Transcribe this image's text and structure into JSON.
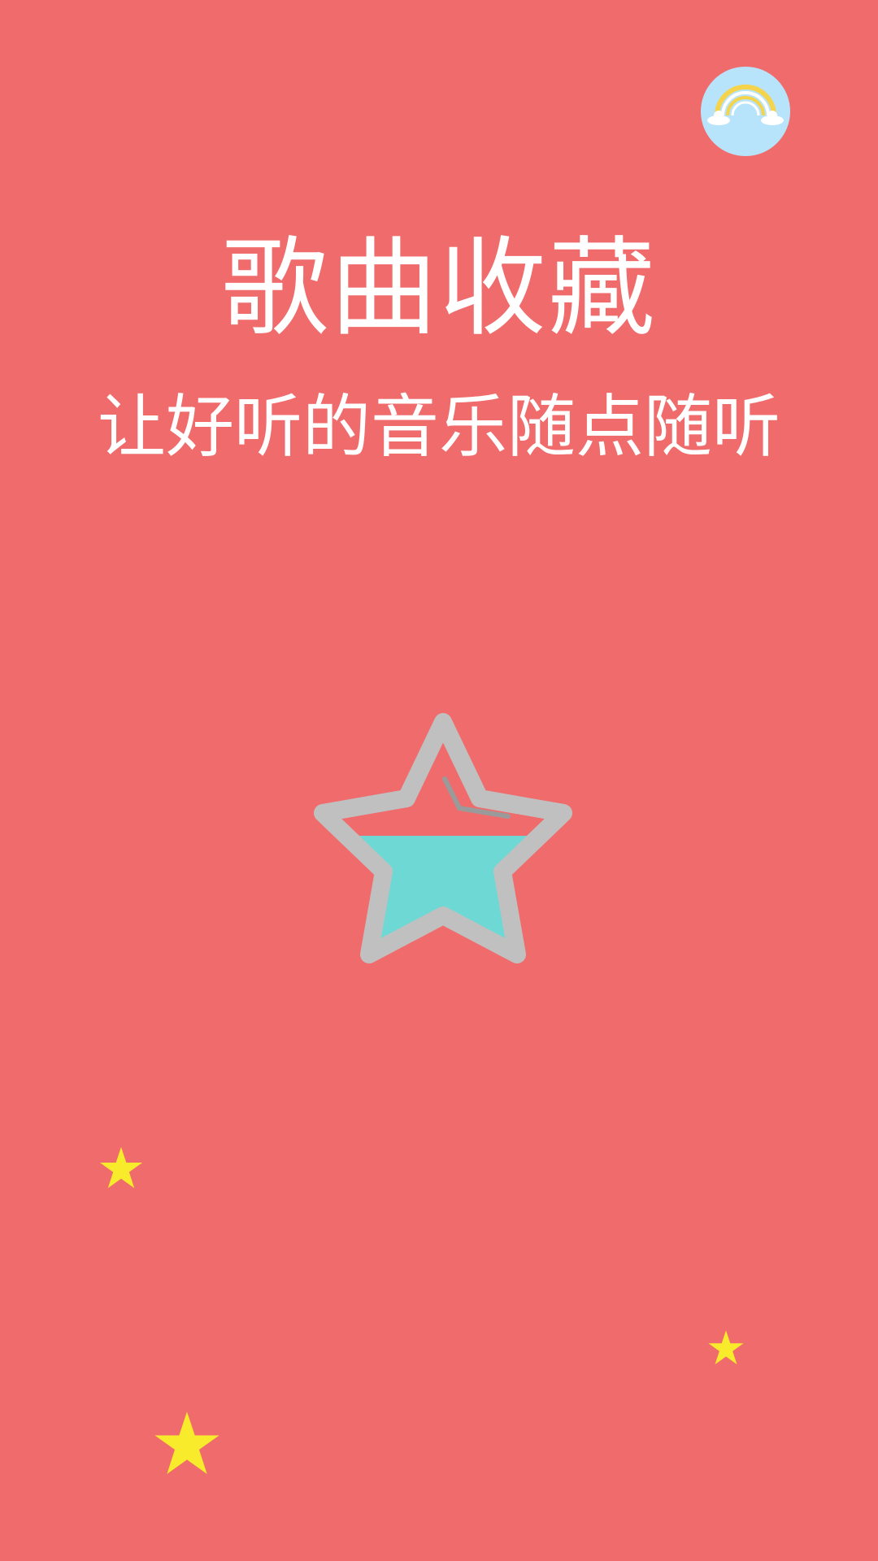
{
  "screen": {
    "title": "歌曲收藏",
    "subtitle": "让好听的音乐随点随听"
  },
  "icons": {
    "badge": "rainbow-icon",
    "hero": "star-favorite-icon",
    "decor": "yellow-star-icon"
  },
  "colors": {
    "background": "#f06c6c",
    "badge_bg": "#b8e4fb",
    "star_outline": "#c0c0c0",
    "star_fill": "#6ed8d4",
    "deco_star": "#f7eb2b",
    "text": "#ffffff"
  },
  "hero_star": {
    "fill_level": 0.5
  }
}
